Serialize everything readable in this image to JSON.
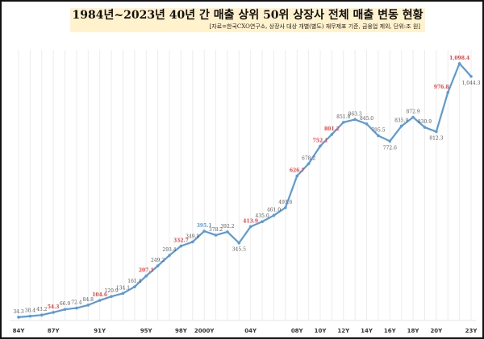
{
  "chart_data": {
    "type": "line",
    "title": "1984년~2023년 40년 간 매출 상위 50위 상장사 전체 매출 변동 현황",
    "subtitle": "[자료=한국CXO연구소, 상장사 대상 개별(별도) 재무제표 기준, 금융업 제외, 단위:조 원]",
    "x": [
      1984,
      1985,
      1986,
      1987,
      1988,
      1989,
      1990,
      1991,
      1992,
      1993,
      1994,
      1995,
      1996,
      1997,
      1998,
      1999,
      2000,
      2001,
      2002,
      2003,
      2004,
      2005,
      2006,
      2007,
      2008,
      2009,
      2010,
      2011,
      2012,
      2013,
      2014,
      2015,
      2016,
      2017,
      2018,
      2019,
      2020,
      2021,
      2022,
      2023
    ],
    "values": [
      34.3,
      38.4,
      43.2,
      54.3,
      66.9,
      72.4,
      84.8,
      104.6,
      120.9,
      134.1,
      161.4,
      207.1,
      249.2,
      293.4,
      332.7,
      349.8,
      395.1,
      378.2,
      392.2,
      345.5,
      413.9,
      435.0,
      461.0,
      493.6,
      626.7,
      678.2,
      752.1,
      801.2,
      851.8,
      863.3,
      845.0,
      795.5,
      772.6,
      835.9,
      872.9,
      830.9,
      812.3,
      976.8,
      1098.4,
      1044.3
    ],
    "data_labels": [
      "34.3",
      "38.4",
      "43.2",
      "54.3",
      "66.9",
      "72.4",
      "84.8",
      "104.6",
      "120.9",
      "134.1",
      "161.4",
      "207.1",
      "249.2",
      "293.4",
      "332.7",
      "349.8",
      "395.1",
      "378.2",
      "392.2",
      "345.5",
      "413.9",
      "435.0",
      "461.0",
      "493.6",
      "626.7",
      "678.2",
      "752.1",
      "801.2",
      "851.8",
      "863.3",
      "845.0",
      "795.5",
      "772.6",
      "835.9",
      "872.9",
      "830.9",
      "812.3",
      "976.8",
      "1,098.4",
      "1,044.3"
    ],
    "highlight_red": [
      1987,
      1991,
      1995,
      1998,
      2004,
      2008,
      2010,
      2011,
      2021,
      2022
    ],
    "highlight_blue": [
      2000
    ],
    "x_tick_labels": [
      {
        "year": 1984,
        "label": "84Y"
      },
      {
        "year": 1987,
        "label": "87Y"
      },
      {
        "year": 1991,
        "label": "91Y"
      },
      {
        "year": 1995,
        "label": "95Y"
      },
      {
        "year": 1998,
        "label": "98Y"
      },
      {
        "year": 2000,
        "label": "2000Y"
      },
      {
        "year": 2004,
        "label": "04Y"
      },
      {
        "year": 2008,
        "label": "08Y"
      },
      {
        "year": 2010,
        "label": "10Y"
      },
      {
        "year": 2012,
        "label": "12Y"
      },
      {
        "year": 2014,
        "label": "14Y"
      },
      {
        "year": 2016,
        "label": "16Y"
      },
      {
        "year": 2018,
        "label": "18Y"
      },
      {
        "year": 2020,
        "label": "20Y"
      },
      {
        "year": 2023,
        "label": "23Y"
      }
    ],
    "xlabel": "",
    "ylabel": "",
    "grid": "vertical",
    "legend": "none",
    "colors": {
      "line": "#5b9bd5",
      "label": "#595959",
      "red": "#ff3b3b",
      "blue": "#5b9bd5",
      "title_bg": "#fff2cc"
    }
  }
}
